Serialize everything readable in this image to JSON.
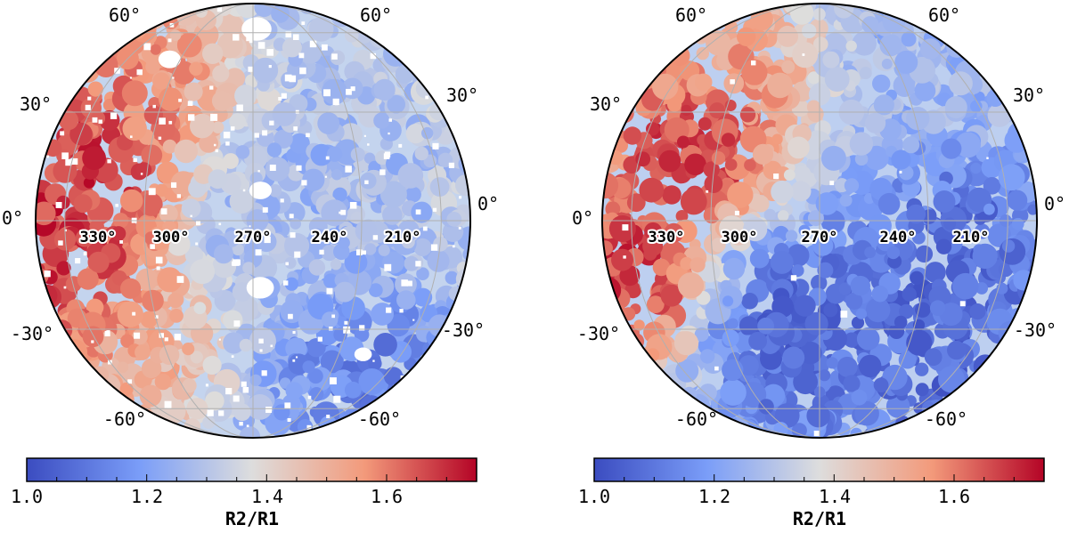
{
  "chart_data": [
    {
      "type": "heatmap",
      "projection": "orthographic",
      "title": "",
      "latitude_labels": [
        "60°",
        "30°",
        "0°",
        "-30°",
        "-60°"
      ],
      "longitude_labels": [
        "330°",
        "300°",
        "270°",
        "240°",
        "210°"
      ],
      "colorbar": {
        "label": "R2/R1",
        "range": [
          1.0,
          1.75
        ],
        "ticks": [
          "1.0",
          "1.2",
          "1.4",
          "1.6"
        ],
        "colormap": "coolwarm"
      },
      "features": [
        {
          "lat": 15,
          "lon": 325,
          "value": 1.75
        },
        {
          "lat": -15,
          "lon": 342,
          "value": 1.75
        },
        {
          "lat": 45,
          "lon": 320,
          "value": 1.6
        },
        {
          "lat": -35,
          "lon": 320,
          "value": 1.55
        },
        {
          "lat": 0,
          "lon": 255,
          "value": 1.25
        },
        {
          "lat": -50,
          "lon": 215,
          "value": 1.1
        }
      ]
    },
    {
      "type": "heatmap",
      "projection": "orthographic",
      "title": "",
      "latitude_labels": [
        "60°",
        "30°",
        "0°",
        "-30°",
        "-60°"
      ],
      "longitude_labels": [
        "330°",
        "300°",
        "270°",
        "240°",
        "210°"
      ],
      "colorbar": {
        "label": "R2/R1",
        "range": [
          1.0,
          1.75
        ],
        "ticks": [
          "1.0",
          "1.2",
          "1.4",
          "1.6"
        ],
        "colormap": "coolwarm"
      },
      "features": [
        {
          "lat": 22,
          "lon": 310,
          "value": 1.75
        },
        {
          "lat": -15,
          "lon": 338,
          "value": 1.75
        },
        {
          "lat": 50,
          "lon": 315,
          "value": 1.55
        },
        {
          "lat": -30,
          "lon": 280,
          "value": 1.05
        },
        {
          "lat": -12,
          "lon": 230,
          "value": 1.05
        },
        {
          "lat": -45,
          "lon": 225,
          "value": 1.05
        }
      ]
    }
  ],
  "colors": {
    "low": "#3b4cc0",
    "mid": "#dddddd",
    "high": "#b40426"
  }
}
